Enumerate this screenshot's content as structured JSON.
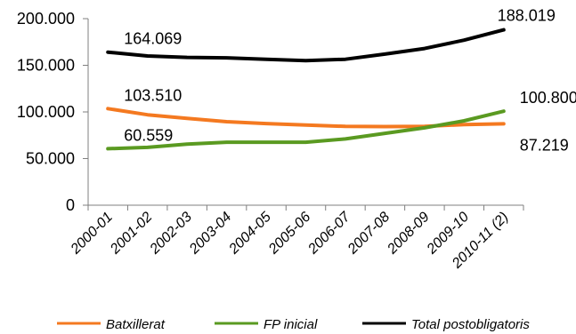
{
  "chart_data": {
    "type": "line",
    "title": "",
    "xlabel": "",
    "ylabel": "",
    "categories": [
      "2000-01",
      "2001-02",
      "2002-03",
      "2003-04",
      "2004-05",
      "2005-06",
      "2006-07",
      "2007-08",
      "2008-09",
      "2009-10",
      "2010-11 (2)"
    ],
    "y_ticks": [
      "0",
      "50.000",
      "100.000",
      "150.000",
      "200.000"
    ],
    "ylim": [
      0,
      200000
    ],
    "grid": false,
    "legend_position": "bottom",
    "series": [
      {
        "name": "Batxillerat",
        "color": "#f47920",
        "values": [
          103510,
          97000,
          93000,
          89500,
          87500,
          86000,
          84500,
          84300,
          84500,
          86500,
          87219
        ],
        "labels": [
          {
            "index": 0,
            "text": "103.510",
            "position": "above-right"
          },
          {
            "index": 10,
            "text": "87.219",
            "position": "below-right"
          }
        ]
      },
      {
        "name": "FP inicial",
        "color": "#5a9a21",
        "values": [
          60559,
          62000,
          65500,
          67500,
          67500,
          67500,
          71000,
          77000,
          83000,
          90500,
          100800
        ],
        "labels": [
          {
            "index": 0,
            "text": "60.559",
            "position": "above-right"
          },
          {
            "index": 10,
            "text": "100.800",
            "position": "above-right"
          }
        ]
      },
      {
        "name": "Total postobligatoris",
        "color": "#000000",
        "values": [
          164069,
          160000,
          158500,
          158000,
          156500,
          155000,
          156500,
          162000,
          168000,
          177000,
          188019
        ],
        "labels": [
          {
            "index": 0,
            "text": "164.069",
            "position": "above-right"
          },
          {
            "index": 10,
            "text": "188.019",
            "position": "above"
          }
        ]
      }
    ]
  }
}
